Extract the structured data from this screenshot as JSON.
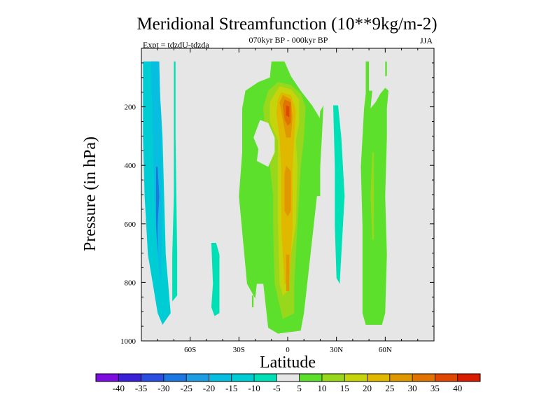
{
  "chart_data": {
    "type": "heatmap",
    "title": "Meridional Streamfunction (10**9kg/m-2)",
    "subtitle": "070kyr BP - 000kyr BP",
    "left_label": "Expt = tdzdU-tdzda",
    "right_label": "JJA",
    "xlabel": "Latitude",
    "ylabel": "Pressure (in hPa)",
    "x_range": [
      -90,
      90
    ],
    "y_range": [
      1000,
      0
    ],
    "x_ticks": [
      {
        "value": -60,
        "label": "60S"
      },
      {
        "value": -30,
        "label": "30S"
      },
      {
        "value": 0,
        "label": "0"
      },
      {
        "value": 30,
        "label": "30N"
      },
      {
        "value": 60,
        "label": "60N"
      }
    ],
    "y_ticks": [
      {
        "value": 200,
        "label": "200"
      },
      {
        "value": 400,
        "label": "400"
      },
      {
        "value": 600,
        "label": "600"
      },
      {
        "value": 800,
        "label": "800"
      },
      {
        "value": 1000,
        "label": "1000"
      }
    ],
    "contour_levels": [
      -40,
      -35,
      -30,
      -25,
      -20,
      -15,
      -10,
      -5,
      5,
      10,
      15,
      20,
      25,
      30,
      35,
      40
    ],
    "colorbar_colors": [
      "#7c0fe0",
      "#3a21d8",
      "#2a4fe0",
      "#1d77e0",
      "#1e9ce4",
      "#08bee0",
      "#00ccd4",
      "#00e0b6",
      "#e6e6e6",
      "#5de02c",
      "#98d81c",
      "#c6d40c",
      "#e0b800",
      "#e09800",
      "#e07400",
      "#e04800",
      "#d81c00"
    ],
    "background_color": "#e6e6e6",
    "regions": [
      {
        "name": "sh-negative-cell",
        "fill_index": 6,
        "points": [
          [
            -89,
            45
          ],
          [
            -80,
            45
          ],
          [
            -78,
            205
          ],
          [
            -77,
            305
          ],
          [
            -76,
            505
          ],
          [
            -75,
            705
          ],
          [
            -72,
            905
          ],
          [
            -77,
            945
          ],
          [
            -80,
            905
          ],
          [
            -83,
            805
          ],
          [
            -86,
            705
          ],
          [
            -88,
            505
          ],
          [
            -89,
            305
          ]
        ]
      },
      {
        "name": "sh-negative-core",
        "fill_index": 5,
        "points": [
          [
            -84,
            45
          ],
          [
            -79,
            45
          ],
          [
            -78,
            255
          ],
          [
            -77,
            505
          ],
          [
            -78,
            805
          ],
          [
            -80,
            705
          ],
          [
            -82,
            505
          ],
          [
            -83,
            305
          ]
        ]
      },
      {
        "name": "sh-negative-inner",
        "fill_index": 3,
        "points": [
          [
            -81,
            405
          ],
          [
            -80,
            405
          ],
          [
            -79,
            505
          ],
          [
            -80,
            605
          ],
          [
            -80,
            705
          ],
          [
            -81,
            605
          ],
          [
            -81,
            505
          ]
        ]
      },
      {
        "name": "sh-strip-2",
        "fill_index": 7,
        "points": [
          [
            -70,
            45
          ],
          [
            -69,
            45
          ],
          [
            -69,
            305
          ],
          [
            -68,
            705
          ],
          [
            -68,
            845
          ],
          [
            -71,
            865
          ],
          [
            -71,
            705
          ],
          [
            -70,
            505
          ]
        ]
      },
      {
        "name": "sh-small-blob",
        "fill_index": 7,
        "points": [
          [
            -47,
            665
          ],
          [
            -44,
            665
          ],
          [
            -42,
            705
          ],
          [
            -42,
            905
          ],
          [
            -45,
            915
          ],
          [
            -47,
            885
          ],
          [
            -46,
            805
          ]
        ]
      },
      {
        "name": "tiny-positive",
        "fill_index": 9,
        "points": [
          [
            -22,
            845
          ],
          [
            -21,
            845
          ],
          [
            -21,
            885
          ],
          [
            -22,
            885
          ]
        ]
      },
      {
        "name": "hadley-outer",
        "fill_index": 9,
        "points": [
          [
            -10,
            45
          ],
          [
            -2,
            45
          ],
          [
            2,
            95
          ],
          [
            8,
            145
          ],
          [
            15,
            195
          ],
          [
            21,
            250
          ],
          [
            20,
            405
          ],
          [
            16,
            605
          ],
          [
            12,
            805
          ],
          [
            10,
            905
          ],
          [
            8,
            965
          ],
          [
            -6,
            975
          ],
          [
            -12,
            955
          ],
          [
            -13,
            905
          ],
          [
            -15,
            805
          ],
          [
            -19,
            805
          ],
          [
            -20,
            855
          ],
          [
            -25,
            805
          ],
          [
            -30,
            505
          ],
          [
            -28,
            355
          ],
          [
            -28,
            205
          ],
          [
            -26,
            145
          ],
          [
            -18,
            115
          ],
          [
            -11,
            100
          ]
        ]
      },
      {
        "name": "hadley-10",
        "fill_index": 10,
        "points": [
          [
            -6,
            115
          ],
          [
            2,
            125
          ],
          [
            8,
            155
          ],
          [
            11,
            200
          ],
          [
            10,
            305
          ],
          [
            8,
            405
          ],
          [
            6,
            605
          ],
          [
            4,
            805
          ],
          [
            4,
            905
          ],
          [
            -3,
            925
          ],
          [
            -6,
            855
          ],
          [
            -8,
            805
          ],
          [
            -9,
            605
          ],
          [
            -9,
            505
          ],
          [
            -11,
            400
          ],
          [
            -14,
            305
          ],
          [
            -15,
            200
          ],
          [
            -12,
            145
          ]
        ]
      },
      {
        "name": "hadley-15",
        "fill_index": 11,
        "points": [
          [
            -5,
            130
          ],
          [
            2,
            140
          ],
          [
            7,
            175
          ],
          [
            7,
            255
          ],
          [
            5,
            315
          ],
          [
            6,
            405
          ],
          [
            5,
            605
          ],
          [
            2,
            705
          ],
          [
            1,
            825
          ],
          [
            -3,
            845
          ],
          [
            -5,
            805
          ],
          [
            -6,
            605
          ],
          [
            -6,
            405
          ],
          [
            -6,
            315
          ],
          [
            -11,
            250
          ],
          [
            -11,
            185
          ],
          [
            -8,
            155
          ]
        ]
      },
      {
        "name": "hadley-20",
        "fill_index": 12,
        "points": [
          [
            -4,
            150
          ],
          [
            2,
            160
          ],
          [
            5,
            210
          ],
          [
            4,
            305
          ],
          [
            3,
            405
          ],
          [
            3,
            605
          ],
          [
            1,
            805
          ],
          [
            -2,
            805
          ],
          [
            -4,
            605
          ],
          [
            -4,
            405
          ],
          [
            -5,
            305
          ],
          [
            -7,
            220
          ],
          [
            -6,
            175
          ]
        ]
      },
      {
        "name": "hadley-25",
        "fill_index": 13,
        "points": [
          [
            -3,
            160
          ],
          [
            2,
            175
          ],
          [
            3,
            235
          ],
          [
            2,
            305
          ],
          [
            -1,
            305
          ],
          [
            -3,
            245
          ],
          [
            -5,
            185
          ]
        ]
      },
      {
        "name": "hadley-25-mid",
        "fill_index": 13,
        "points": [
          [
            -1,
            400
          ],
          [
            2,
            420
          ],
          [
            2,
            555
          ],
          [
            0,
            575
          ],
          [
            -2,
            555
          ],
          [
            -2,
            430
          ]
        ]
      },
      {
        "name": "hadley-25-low",
        "fill_index": 13,
        "points": [
          [
            -1,
            705
          ],
          [
            1,
            705
          ],
          [
            1,
            830
          ],
          [
            -1,
            830
          ]
        ]
      },
      {
        "name": "hadley-30",
        "fill_index": 14,
        "points": [
          [
            -2,
            175
          ],
          [
            2,
            185
          ],
          [
            2,
            255
          ],
          [
            0,
            265
          ],
          [
            -2,
            245
          ],
          [
            -3,
            195
          ]
        ]
      },
      {
        "name": "hadley-35",
        "fill_index": 15,
        "points": [
          [
            -1,
            195
          ],
          [
            1,
            200
          ],
          [
            1,
            235
          ],
          [
            -1,
            230
          ]
        ]
      },
      {
        "name": "gap-white",
        "fill_index": 8,
        "points": [
          [
            -17,
            245
          ],
          [
            -12,
            255
          ],
          [
            -8,
            305
          ],
          [
            -8,
            355
          ],
          [
            -12,
            405
          ],
          [
            -19,
            385
          ],
          [
            -18,
            345
          ],
          [
            -21,
            305
          ]
        ]
      },
      {
        "name": "nh-positive-strip",
        "fill_index": 9,
        "points": [
          [
            20,
            215
          ],
          [
            21,
            205
          ],
          [
            22,
            195
          ],
          [
            21,
            305
          ],
          [
            20,
            405
          ],
          [
            20,
            505
          ],
          [
            18,
            505
          ],
          [
            18,
            405
          ],
          [
            19,
            305
          ]
        ]
      },
      {
        "name": "nh-negative-strip",
        "fill_index": 7,
        "points": [
          [
            28,
            195
          ],
          [
            31,
            195
          ],
          [
            33,
            305
          ],
          [
            35,
            505
          ],
          [
            33,
            705
          ],
          [
            32,
            805
          ],
          [
            30,
            785
          ],
          [
            29,
            605
          ],
          [
            29,
            405
          ]
        ]
      },
      {
        "name": "nh-60-positive",
        "fill_index": 9,
        "points": [
          [
            48,
            45
          ],
          [
            50,
            45
          ],
          [
            50,
            145
          ],
          [
            52,
            145
          ],
          [
            51,
            205
          ],
          [
            54,
            185
          ],
          [
            57,
            155
          ],
          [
            60,
            135
          ],
          [
            62,
            145
          ],
          [
            61,
            205
          ],
          [
            61,
            305
          ],
          [
            60,
            505
          ],
          [
            61,
            705
          ],
          [
            60,
            905
          ],
          [
            58,
            945
          ],
          [
            48,
            945
          ],
          [
            46,
            905
          ],
          [
            46,
            605
          ],
          [
            45,
            405
          ],
          [
            46,
            305
          ],
          [
            47,
            205
          ],
          [
            48,
            155
          ]
        ]
      },
      {
        "name": "nh-60-inner",
        "fill_index": 10,
        "points": [
          [
            52,
            355
          ],
          [
            53,
            355
          ],
          [
            53,
            505
          ],
          [
            53,
            655
          ],
          [
            52,
            655
          ],
          [
            51,
            505
          ]
        ]
      },
      {
        "name": "nh-strip-top",
        "fill_index": 9,
        "points": [
          [
            60,
            45
          ],
          [
            61,
            45
          ],
          [
            61,
            95
          ],
          [
            60,
            95
          ]
        ]
      }
    ]
  }
}
